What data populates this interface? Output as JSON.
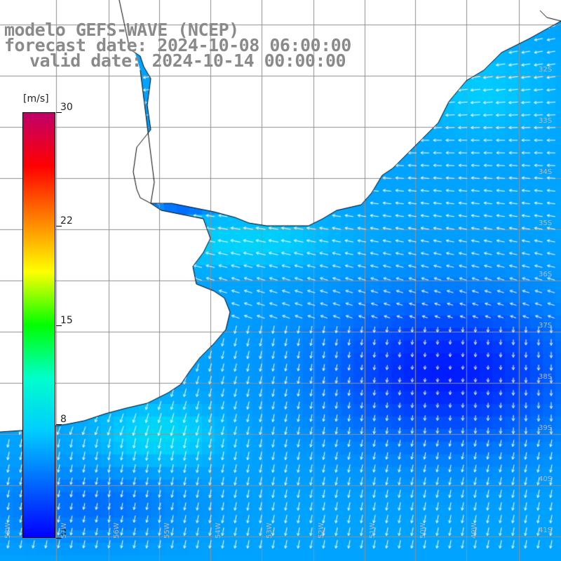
{
  "title": {
    "line1": "modelo GEFS-WAVE (NCEP)",
    "line2": "forecast date: 2024-10-08 06:00:00",
    "line3": "valid date: 2024-10-14 00:00:00"
  },
  "colorbar": {
    "unit": "[m/s]",
    "min": 0,
    "max": 30,
    "ticks": [
      {
        "value": 30,
        "label": "30"
      },
      {
        "value": 22,
        "label": "22"
      },
      {
        "value": 15,
        "label": "15"
      },
      {
        "value": 8,
        "label": "8"
      },
      {
        "value": 0,
        "label": "0"
      }
    ],
    "colors": [
      "#0000ff",
      "#0066ff",
      "#00ccff",
      "#00ffcc",
      "#00ff00",
      "#ffff00",
      "#ff8000",
      "#ff0000",
      "#c0006a"
    ]
  },
  "lat_labels": [
    "32S",
    "33S",
    "34S",
    "35S",
    "36S",
    "37S",
    "38S",
    "39S",
    "40S",
    "41S"
  ],
  "lon_labels": [
    "58W",
    "57W",
    "56W",
    "55W",
    "54W",
    "53W",
    "52W",
    "51W",
    "50W",
    "49W"
  ],
  "colors": {
    "land": "#ffffff",
    "grid": "#909090",
    "coast": "#000000",
    "arrow": "#ffffff"
  }
}
